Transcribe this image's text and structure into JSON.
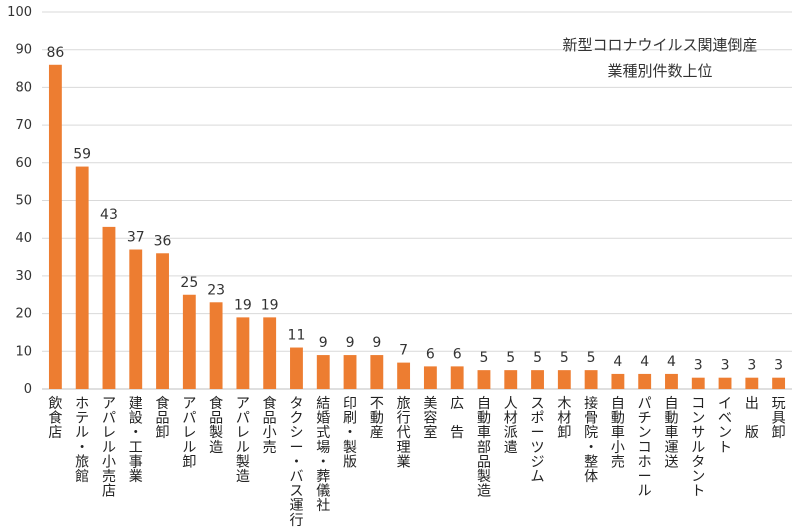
{
  "chart_data": {
    "type": "bar",
    "title_lines": [
      "新型コロナウイルス関連倒産",
      "業種別件数上位"
    ],
    "categories": [
      "飲食店",
      "ホテル・旅館",
      "アパレル小売店",
      "建設・工事業",
      "食品卸",
      "アパレル卸",
      "食品製造",
      "アパレル製造",
      "食品小売",
      "タクシー・バス運行",
      "結婚式場・葬儀社",
      "印刷・製版",
      "不動産",
      "旅行代理業",
      "美容室",
      "広　告",
      "自動車部品製造",
      "人材派遣",
      "スポーツジム",
      "木材卸",
      "接骨院・整体",
      "自動車小売",
      "パチンコホール",
      "自動車運送",
      "コンサルタント",
      "イベント",
      "出　版",
      "玩具卸"
    ],
    "values": [
      86,
      59,
      43,
      37,
      36,
      25,
      23,
      19,
      19,
      11,
      9,
      9,
      9,
      7,
      6,
      6,
      5,
      5,
      5,
      5,
      5,
      4,
      4,
      4,
      3,
      3,
      3,
      3
    ],
    "ylim": [
      0,
      100
    ],
    "yticks": [
      0,
      10,
      20,
      30,
      40,
      50,
      60,
      70,
      80,
      90,
      100
    ],
    "grid": true,
    "bar_color": "#ed7d31",
    "xlabel": "",
    "ylabel": ""
  }
}
